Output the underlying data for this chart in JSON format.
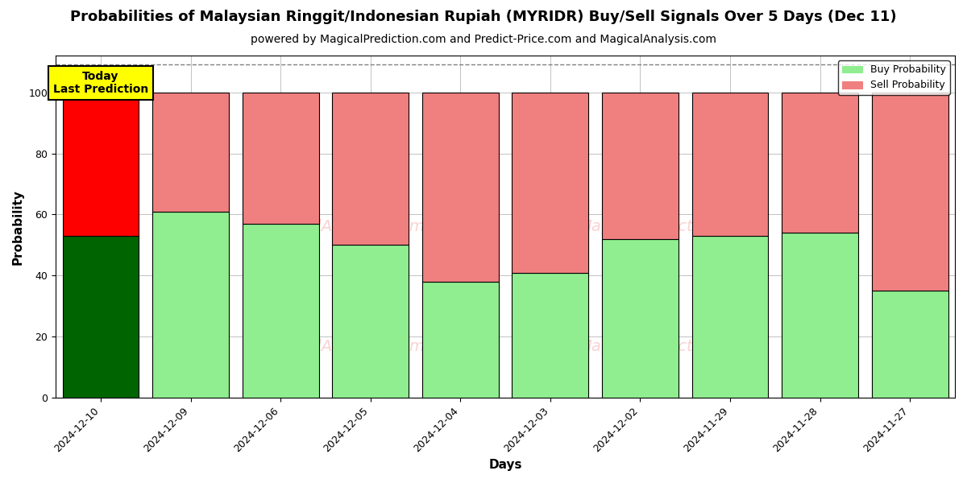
{
  "title": "Probabilities of Malaysian Ringgit/Indonesian Rupiah (MYRIDR) Buy/Sell Signals Over 5 Days (Dec 11)",
  "subtitle": "powered by MagicalPrediction.com and Predict-Price.com and MagicalAnalysis.com",
  "xlabel": "Days",
  "ylabel": "Probability",
  "categories": [
    "2024-12-10",
    "2024-12-09",
    "2024-12-06",
    "2024-12-05",
    "2024-12-04",
    "2024-12-03",
    "2024-12-02",
    "2024-11-29",
    "2024-11-28",
    "2024-11-27"
  ],
  "buy_values": [
    53,
    61,
    57,
    50,
    38,
    41,
    52,
    53,
    54,
    35
  ],
  "sell_values": [
    47,
    39,
    43,
    50,
    62,
    59,
    48,
    47,
    46,
    65
  ],
  "today_bar_index": 0,
  "buy_color_today": "#006400",
  "sell_color_today": "#FF0000",
  "buy_color_normal": "#90EE90",
  "sell_color_normal": "#F08080",
  "bar_edge_color": "#000000",
  "annotation_text": "Today\nLast Prediction",
  "annotation_bg": "#FFFF00",
  "legend_buy": "Buy Probability",
  "legend_sell": "Sell Probability",
  "ylim": [
    0,
    112
  ],
  "yticks": [
    0,
    20,
    40,
    60,
    80,
    100
  ],
  "dashed_line_y": 109,
  "fig_width": 12,
  "fig_height": 6,
  "title_fontsize": 13,
  "subtitle_fontsize": 10,
  "axis_label_fontsize": 11,
  "tick_fontsize": 9,
  "background_color": "#ffffff",
  "grid_color": "#aaaaaa",
  "bar_width": 0.85
}
